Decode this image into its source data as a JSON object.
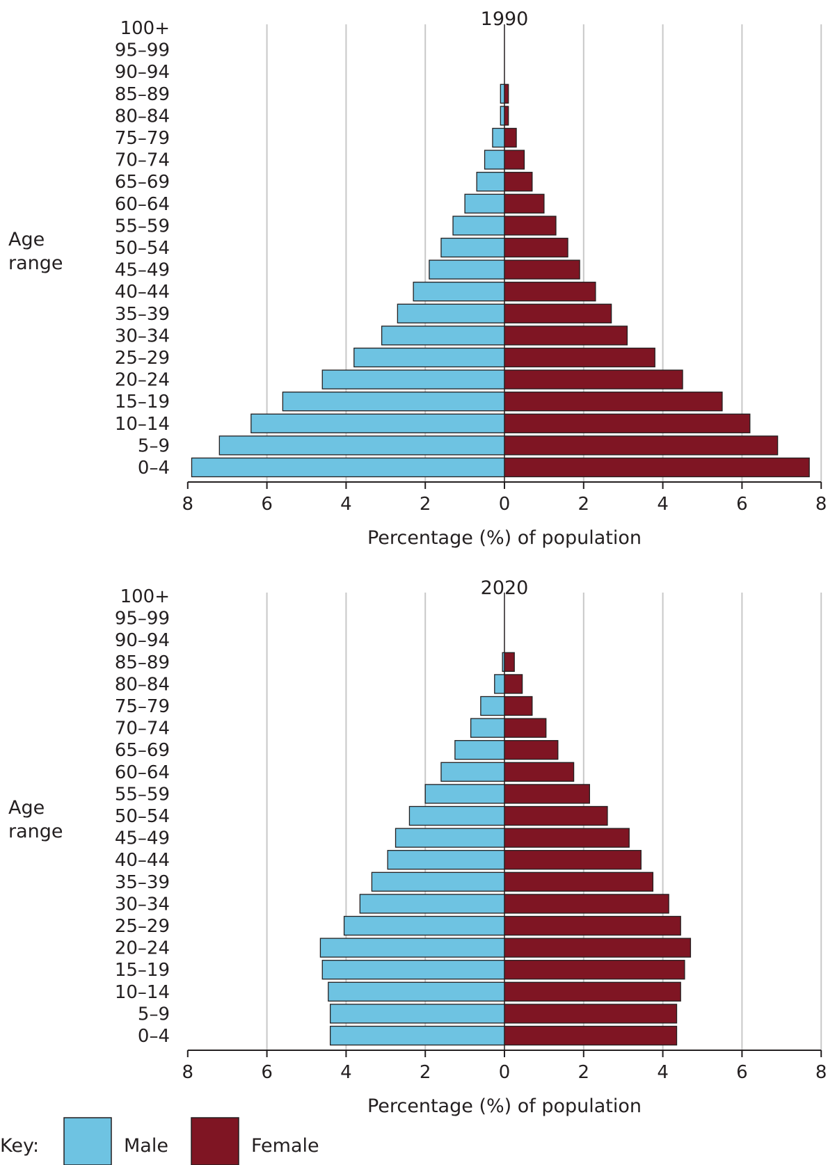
{
  "shared": {
    "ylabel_line1": "Age",
    "ylabel_line2": "range",
    "xlabel": "Percentage (%) of population",
    "age_groups": [
      "0–4",
      "5–9",
      "10–14",
      "15–19",
      "20–24",
      "25–29",
      "30–34",
      "35–39",
      "40–44",
      "45–49",
      "50–54",
      "55–59",
      "60–64",
      "65–69",
      "70–74",
      "75–79",
      "80–84",
      "85–89",
      "90–94",
      "95–99",
      "100+"
    ],
    "xticks": [
      8,
      6,
      4,
      2,
      0,
      2,
      4,
      6,
      8
    ],
    "colors": {
      "male": "#6ec3e2",
      "female": "#7f1523",
      "grid": "#c8c8c8",
      "axis": "#231f20"
    }
  },
  "legend": {
    "key_label": "Key:",
    "male_label": "Male",
    "female_label": "Female"
  },
  "chart_data": [
    {
      "type": "bar",
      "subtype": "population-pyramid",
      "title": "1990",
      "categories": [
        "0–4",
        "5–9",
        "10–14",
        "15–19",
        "20–24",
        "25–29",
        "30–34",
        "35–39",
        "40–44",
        "45–49",
        "50–54",
        "55–59",
        "60–64",
        "65–69",
        "70–74",
        "75–79",
        "80–84",
        "85–89",
        "90–94",
        "95–99",
        "100+"
      ],
      "series": [
        {
          "name": "Male",
          "values": [
            7.9,
            7.2,
            6.4,
            5.6,
            4.6,
            3.8,
            3.1,
            2.7,
            2.3,
            1.9,
            1.6,
            1.3,
            1.0,
            0.7,
            0.5,
            0.3,
            0.1,
            0.1,
            0,
            0,
            0
          ]
        },
        {
          "name": "Female",
          "values": [
            7.7,
            6.9,
            6.2,
            5.5,
            4.5,
            3.8,
            3.1,
            2.7,
            2.3,
            1.9,
            1.6,
            1.3,
            1.0,
            0.7,
            0.5,
            0.3,
            0.1,
            0.1,
            0,
            0,
            0
          ]
        }
      ],
      "xlabel": "Percentage (%) of population",
      "ylabel": "Age range",
      "xlim": [
        -8,
        8
      ],
      "grid": true,
      "legend": "bottom"
    },
    {
      "type": "bar",
      "subtype": "population-pyramid",
      "title": "2020",
      "categories": [
        "0–4",
        "5–9",
        "10–14",
        "15–19",
        "20–24",
        "25–29",
        "30–34",
        "35–39",
        "40–44",
        "45–49",
        "50–54",
        "55–59",
        "60–64",
        "65–69",
        "70–74",
        "75–79",
        "80–84",
        "85–89",
        "90–94",
        "95–99",
        "100+"
      ],
      "series": [
        {
          "name": "Male",
          "values": [
            4.4,
            4.4,
            4.45,
            4.6,
            4.65,
            4.05,
            3.65,
            3.35,
            2.95,
            2.75,
            2.4,
            2.0,
            1.6,
            1.25,
            0.85,
            0.6,
            0.25,
            0.05,
            0,
            0,
            0
          ]
        },
        {
          "name": "Female",
          "values": [
            4.35,
            4.35,
            4.45,
            4.55,
            4.7,
            4.45,
            4.15,
            3.75,
            3.45,
            3.15,
            2.6,
            2.15,
            1.75,
            1.35,
            1.05,
            0.7,
            0.45,
            0.25,
            0,
            0,
            0
          ]
        }
      ],
      "xlabel": "Percentage (%) of population",
      "ylabel": "Age range",
      "xlim": [
        -8,
        8
      ],
      "grid": true,
      "legend": "bottom"
    }
  ]
}
